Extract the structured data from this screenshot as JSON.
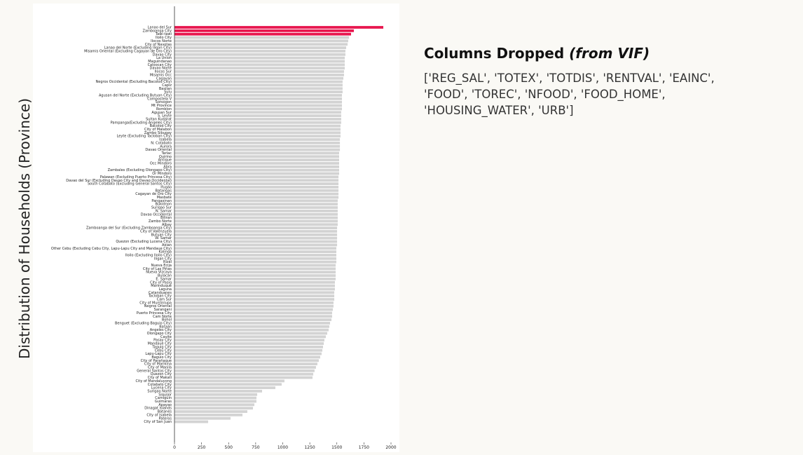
{
  "chart_data": {
    "type": "barh",
    "ylabel": "Distribution of Households (Province)",
    "categories": [
      "Lanao del Sur",
      "Zamboanga City",
      "Tawi-tawi",
      "Iloilo City",
      "Ilocos Norte",
      "City of Navotas",
      "Lanao del Norte (Excluding Iligan City)",
      "Misamis Oriental (Excluding Cagayan de Oro City)",
      "Davao City",
      "La Union",
      "Maguindanao",
      "Caloocan City",
      "Davao Norte",
      "Ilocos Sur",
      "Misamis Occ",
      "Cagayan",
      "Negros Occidental (Excluding Bacolod City)",
      "Capiz",
      "Basilan",
      "Sulu",
      "Agusan del Norte (Excluding Butuan City)",
      "Compostela V",
      "Sorsogon",
      "Mt Province",
      "Romblon",
      "Agusan Sur",
      "S. Leyte",
      "Sultan Kudarat",
      "Pampanga(Excluding Angeles City)",
      "Bacolod City",
      "City of Malabon",
      "Zambo Sibugay",
      "Leyte (Excluding Tacloban City)",
      "Isabela",
      "N. Cotabato",
      "Aurora",
      "Davao Oriental",
      "Tarlac",
      "Quirino",
      "Antique",
      "Occ Mindoro",
      "Abra",
      "Zambales (Excluding Olongapo City)",
      "Or Mindoro",
      "Palawan (Excluding Puerto Princesa City)",
      "Davao del Sur (Excluding Davao City and Davao Occidental)",
      "South Cotabato (Excluding General Santos City)",
      "Ifugao",
      "Batangas",
      "Cagayan de Oro City",
      "Masbate",
      "Pangasinan",
      "Bukidnon",
      "Surigao Sur",
      "N. Samar",
      "Davao Occidental",
      "Biliran",
      "Zambo Norte",
      "Albay",
      "Zamboanga del Sur (Excluding Zamboanga City)",
      "City of Valenzuela",
      "Butuan City",
      "W. Samar",
      "Quezon (Excluding Lucena City)",
      "Aklan",
      "Other Cebu (Excluding Cebu City, Lapu-Lapu City and Mandaue City)",
      "Kalinga",
      "Iloilo (Excluding Iloilo City)",
      "Iligan City",
      "Rizal",
      "Nueva Ecija",
      "City of Las Piñas",
      "Nueva Vizcaya",
      "Bulacan",
      "E. Samar",
      "City of Pasig",
      "Marinduque",
      "Laguna",
      "Catanduanes",
      "Tacloban City",
      "Cam Sur",
      "City of Muntinlupa",
      "Negros Oriental",
      "Sarangani",
      "Puerto Princesa City",
      "Cam Norte",
      "Bohol",
      "Benguet (Excluding Baguio City)",
      "Bataan",
      "Angeles City",
      "Olongapo City",
      "Cavite",
      "Pasay City",
      "Mandaue City",
      "Taguig City",
      "Cebu City",
      "Lapu-Lapu City",
      "Baguio City",
      "City of Parañaque",
      "City of Marikina",
      "City of Manila",
      "General Santos City",
      "Quezon City",
      "City of Makati",
      "City of Mandaluyong",
      "Cotabato City",
      "Lucena City",
      "Surigao Norte",
      "Siquijor",
      "Camiguin",
      "Guimaras",
      "Apayao",
      "Dinagat Islands",
      "Batanes",
      "City of Isabela",
      "Pateros",
      "City of San Juan"
    ],
    "values": [
      1929,
      1657,
      1631,
      1612,
      1605,
      1599,
      1586,
      1579,
      1579,
      1573,
      1573,
      1573,
      1573,
      1566,
      1566,
      1560,
      1553,
      1553,
      1553,
      1553,
      1547,
      1547,
      1547,
      1547,
      1547,
      1540,
      1540,
      1540,
      1540,
      1534,
      1534,
      1534,
      1534,
      1528,
      1528,
      1528,
      1528,
      1521,
      1521,
      1521,
      1521,
      1521,
      1521,
      1521,
      1515,
      1515,
      1515,
      1515,
      1515,
      1515,
      1515,
      1508,
      1508,
      1508,
      1508,
      1508,
      1508,
      1508,
      1508,
      1502,
      1502,
      1502,
      1502,
      1502,
      1502,
      1495,
      1495,
      1495,
      1495,
      1495,
      1489,
      1489,
      1489,
      1489,
      1489,
      1482,
      1482,
      1482,
      1476,
      1476,
      1476,
      1469,
      1469,
      1463,
      1456,
      1456,
      1450,
      1437,
      1430,
      1424,
      1411,
      1398,
      1385,
      1379,
      1372,
      1366,
      1359,
      1346,
      1333,
      1320,
      1307,
      1294,
      1282,
      1275,
      1016,
      990,
      932,
      809,
      764,
      757,
      757,
      738,
      725,
      673,
      628,
      518,
      311
    ],
    "colors": [
      "#e8174f",
      "#e8174f",
      "#e8174f",
      "#d3d3d3",
      "#d3d3d3",
      "#d3d3d3",
      "#d3d3d3",
      "#d3d3d3",
      "#d3d3d3",
      "#d3d3d3",
      "#d3d3d3",
      "#d3d3d3",
      "#d3d3d3",
      "#d3d3d3",
      "#d3d3d3",
      "#d3d3d3",
      "#d3d3d3",
      "#d3d3d3",
      "#d3d3d3",
      "#d3d3d3",
      "#d3d3d3",
      "#d3d3d3",
      "#d3d3d3",
      "#d3d3d3",
      "#d3d3d3",
      "#d3d3d3",
      "#d3d3d3",
      "#d3d3d3",
      "#d3d3d3",
      "#d3d3d3",
      "#d3d3d3",
      "#d3d3d3",
      "#d3d3d3",
      "#d3d3d3",
      "#d3d3d3",
      "#d3d3d3",
      "#d3d3d3",
      "#d3d3d3",
      "#d3d3d3",
      "#d3d3d3",
      "#d3d3d3",
      "#d3d3d3",
      "#d3d3d3",
      "#d3d3d3",
      "#d3d3d3",
      "#d3d3d3",
      "#d3d3d3",
      "#d3d3d3",
      "#d3d3d3",
      "#d3d3d3",
      "#d3d3d3",
      "#d3d3d3",
      "#d3d3d3",
      "#d3d3d3",
      "#d3d3d3",
      "#d3d3d3",
      "#d3d3d3",
      "#d3d3d3",
      "#d3d3d3",
      "#d3d3d3",
      "#d3d3d3",
      "#d3d3d3",
      "#d3d3d3",
      "#d3d3d3",
      "#d3d3d3",
      "#d3d3d3",
      "#d3d3d3",
      "#d3d3d3",
      "#d3d3d3",
      "#d3d3d3",
      "#d3d3d3",
      "#d3d3d3",
      "#d3d3d3",
      "#d3d3d3",
      "#d3d3d3",
      "#d3d3d3",
      "#d3d3d3",
      "#d3d3d3",
      "#d3d3d3",
      "#d3d3d3",
      "#d3d3d3",
      "#d3d3d3",
      "#d3d3d3",
      "#d3d3d3",
      "#d3d3d3",
      "#d3d3d3",
      "#d3d3d3",
      "#d3d3d3",
      "#d3d3d3",
      "#d3d3d3",
      "#d3d3d3",
      "#d3d3d3",
      "#d3d3d3",
      "#d3d3d3",
      "#d3d3d3",
      "#d3d3d3",
      "#d3d3d3",
      "#d3d3d3",
      "#d3d3d3",
      "#d3d3d3",
      "#d3d3d3",
      "#d3d3d3",
      "#d3d3d3",
      "#d3d3d3",
      "#d3d3d3",
      "#d3d3d3",
      "#d3d3d3",
      "#d3d3d3",
      "#d3d3d3",
      "#d3d3d3",
      "#d3d3d3",
      "#d3d3d3",
      "#d3d3d3",
      "#d3d3d3",
      "#d3d3d3",
      "#d3d3d3",
      "#d3d3d3"
    ],
    "xlim": [
      0,
      2050
    ],
    "xticks": [
      0,
      250,
      500,
      750,
      1000,
      1250,
      1500,
      1750,
      2000
    ]
  },
  "slide": {
    "heading": "Columns Dropped",
    "heading_note": "(from VIF)",
    "body": "['REG_SAL', 'TOTEX', 'TOTDIS', 'RENTVAL', 'EAINC', 'FOOD', 'TOREC', 'NFOOD', 'FOOD_HOME', 'HOUSING_WATER', 'URB']"
  }
}
